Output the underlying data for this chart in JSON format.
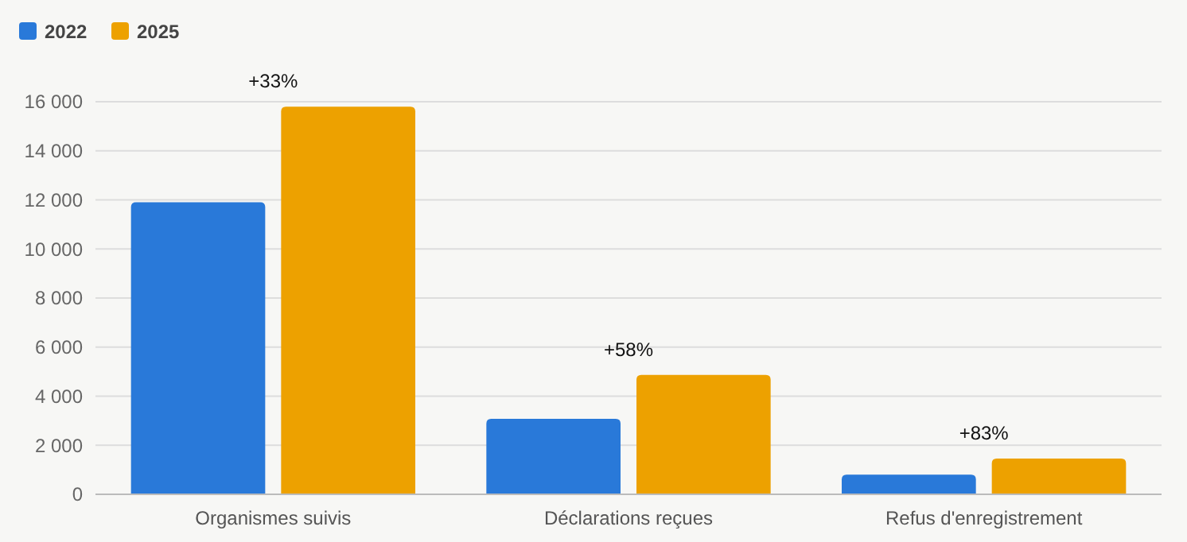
{
  "chart_data": {
    "type": "bar",
    "categories": [
      "Organismes suivis",
      "Déclarations reçues",
      "Refus d'enregistrement"
    ],
    "series": [
      {
        "name": "2022",
        "color": "#2979d9",
        "values": [
          11900,
          3080,
          800
        ]
      },
      {
        "name": "2025",
        "color": "#eda100",
        "values": [
          15800,
          4870,
          1460
        ]
      }
    ],
    "ylim": [
      0,
      16000
    ],
    "yticks": [
      0,
      {
        "value": 2000,
        "label": "2 000"
      },
      {
        "value": 4000,
        "label": "4 000"
      },
      {
        "value": 6000,
        "label": "6 000"
      },
      {
        "value": 8000,
        "label": "8 000"
      },
      {
        "value": 10000,
        "label": "10 000"
      },
      {
        "value": 12000,
        "label": "12 000"
      },
      {
        "value": 14000,
        "label": "14 000"
      },
      {
        "value": 16000,
        "label": "16 000"
      }
    ],
    "grid": "y",
    "legend": "top left",
    "annotations": [
      "+33%",
      "+58%",
      "+83%"
    ]
  }
}
